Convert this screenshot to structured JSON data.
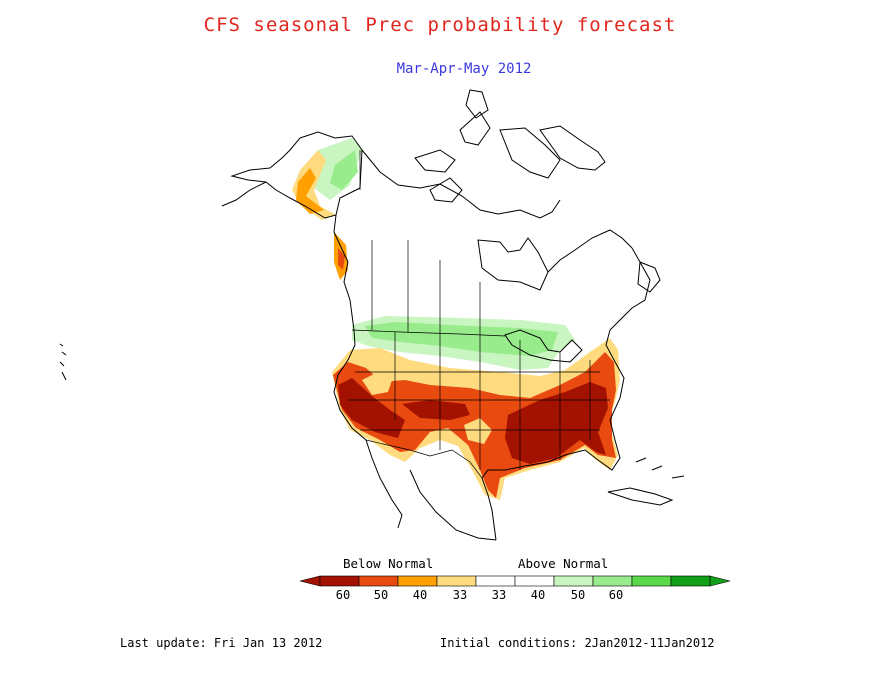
{
  "title": "CFS seasonal Prec probability forecast",
  "subtitle": "Mar-Apr-May 2012",
  "legend": {
    "below_label": "Below Normal",
    "above_label": "Above Normal",
    "ticks": [
      "60",
      "50",
      "40",
      "33",
      "33",
      "40",
      "50",
      "60"
    ],
    "below_colors": [
      "#a31200",
      "#e84a10",
      "#ffa000",
      "#ffdb80"
    ],
    "neutral_color": "#ffffff",
    "above_colors": [
      "#c8f5c0",
      "#98ec8c",
      "#5ad94a",
      "#12a01a"
    ]
  },
  "footer": {
    "last_update": "Last update: Fri Jan 13 2012",
    "initial_conditions": "Initial conditions: 2Jan2012-11Jan2012"
  }
}
